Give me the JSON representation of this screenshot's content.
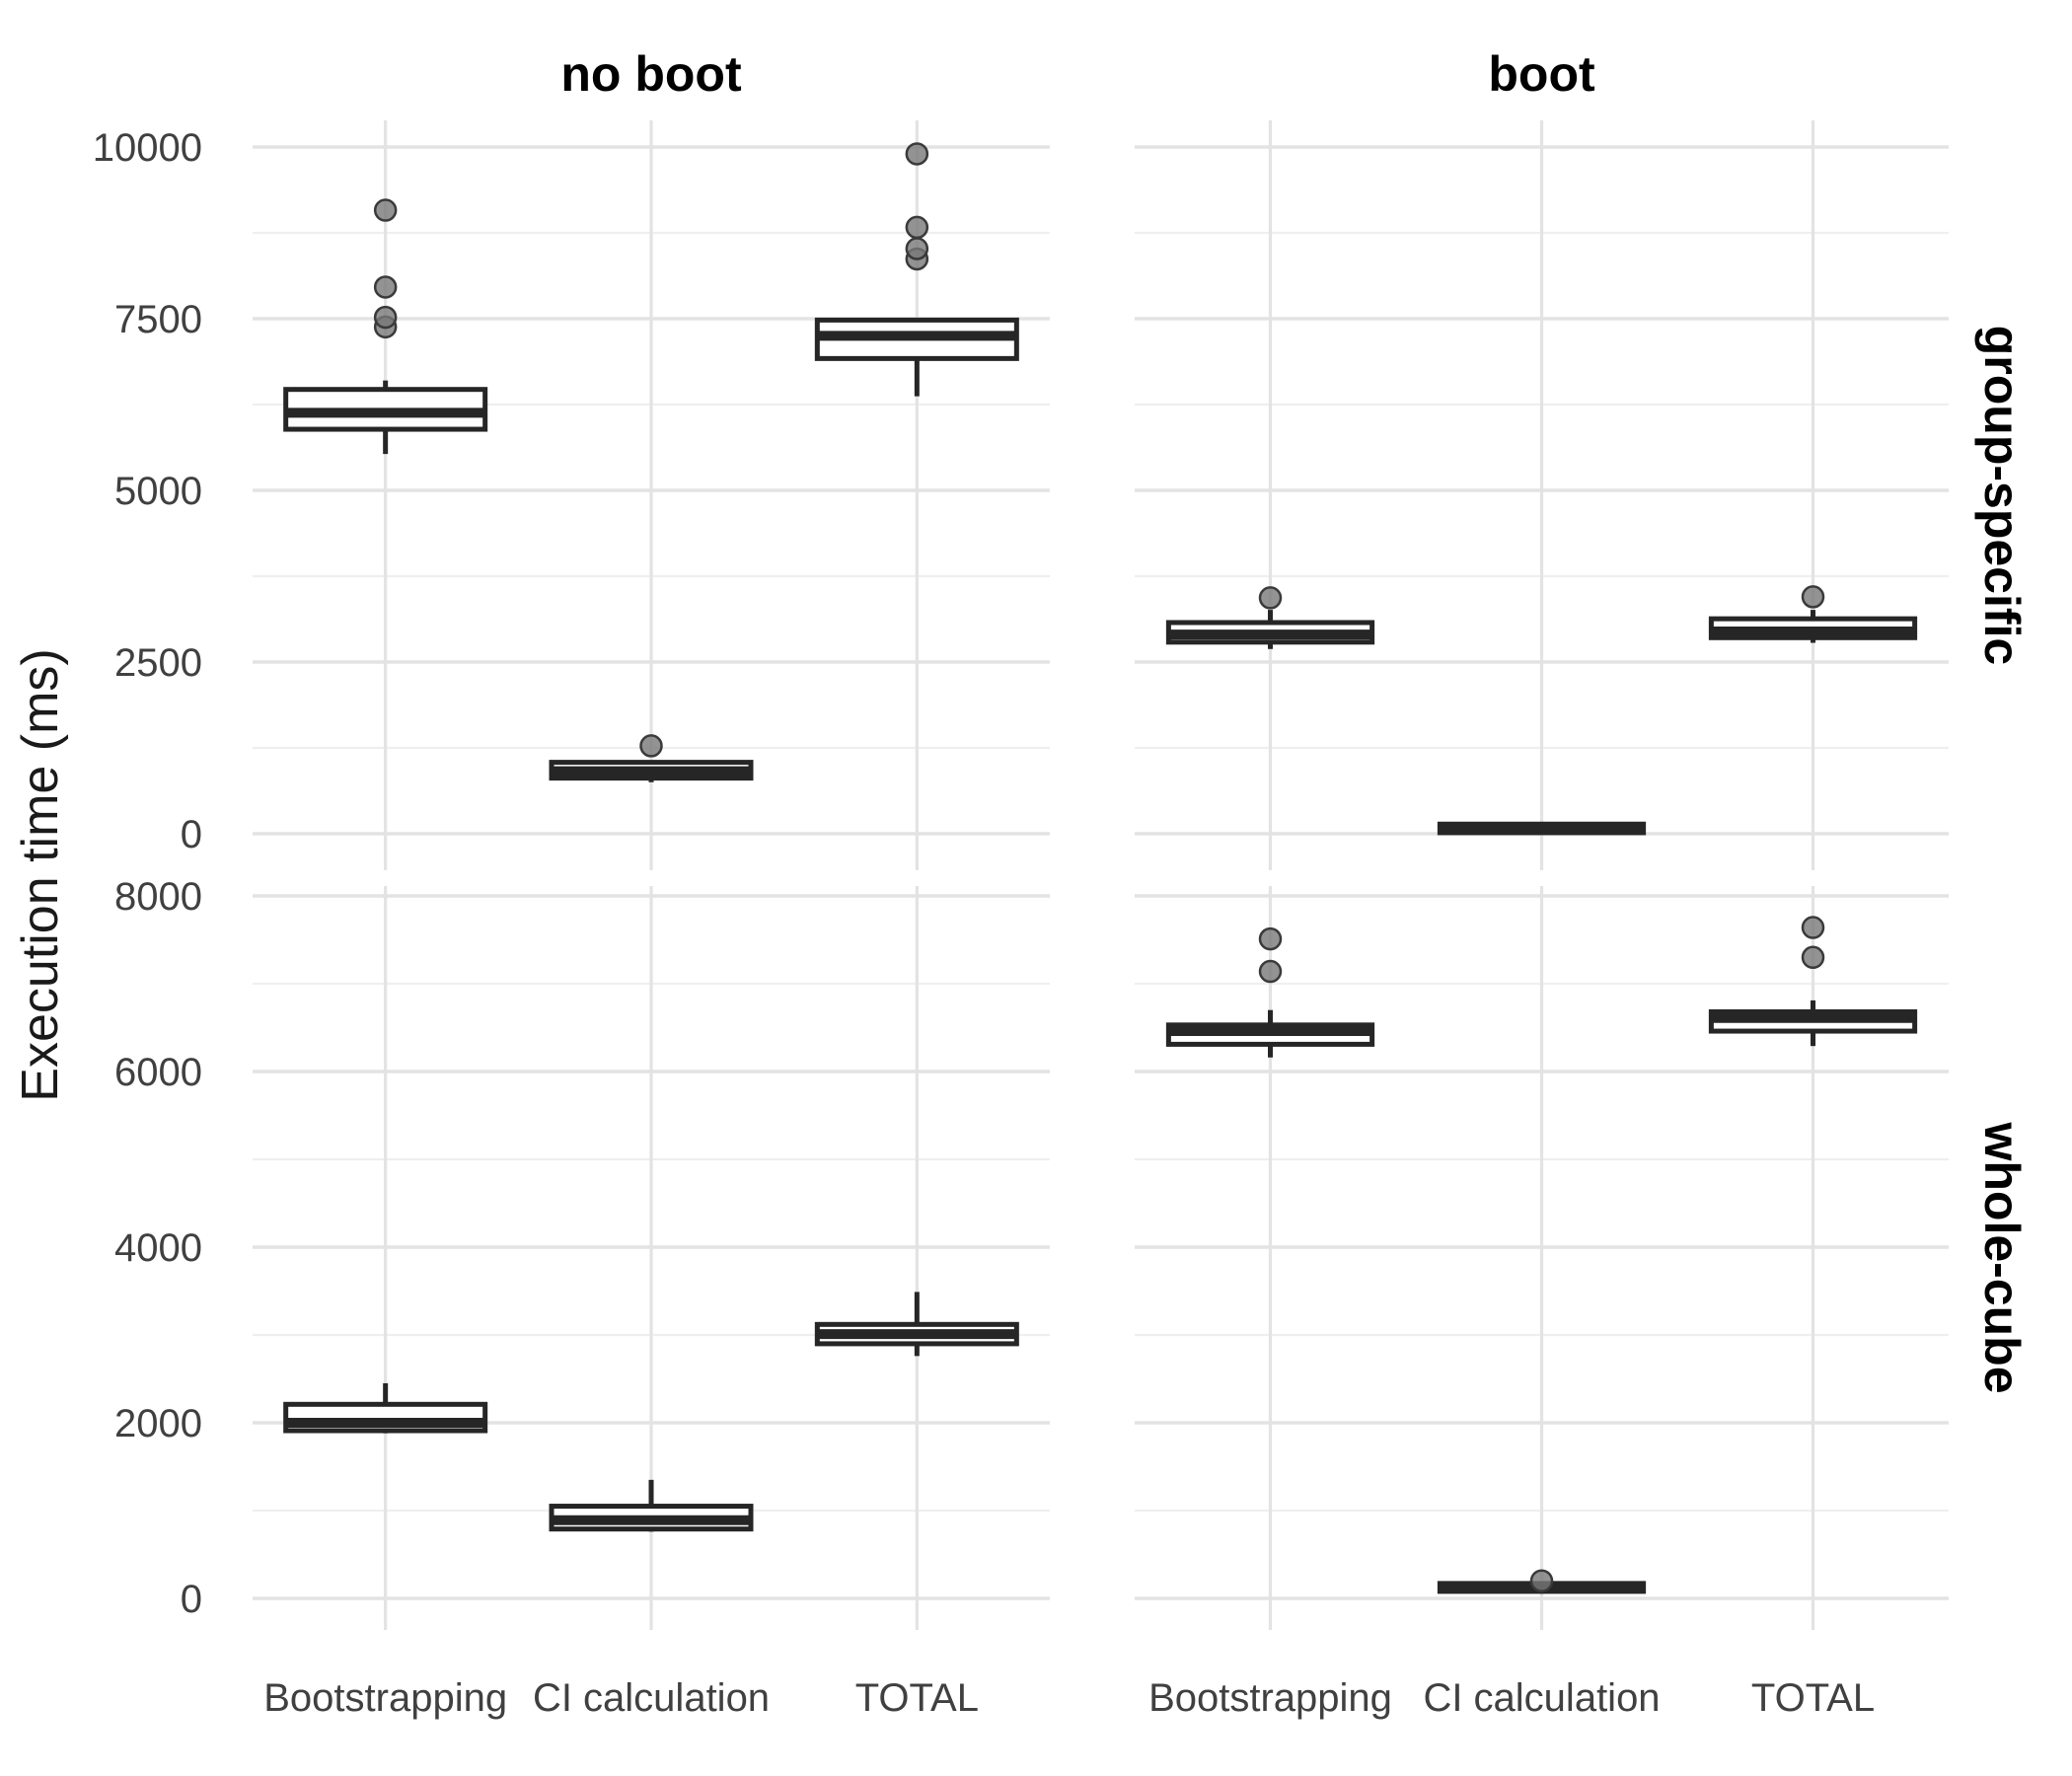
{
  "figure": {
    "y_axis_title": "Execution time (ms)",
    "column_facet_labels": [
      "no boot",
      "boot"
    ],
    "row_facet_labels": [
      "group-specific",
      "whole-cube"
    ],
    "x_category_labels": [
      "Bootstrapping",
      "CI calculation",
      "TOTAL"
    ]
  },
  "style": {
    "background": "#ffffff",
    "grid_major_color": "#e3e3e3",
    "grid_minor_color": "#efefef",
    "box_stroke_color": "#262626",
    "box_fill_color": "#ffffff",
    "outlier_fill_color": "#787878",
    "outlier_stroke_color": "#3a3a3a",
    "tick_text_color": "#404040",
    "strip_text_color": "#000000",
    "axis_title_color": "#1a1a1a"
  },
  "chart_data": {
    "type": "boxplot",
    "title": "",
    "xlabel": "",
    "ylabel": "Execution time (ms)",
    "categories": [
      "Bootstrapping",
      "CI calculation",
      "TOTAL"
    ],
    "facets": {
      "columns": [
        "no boot",
        "boot"
      ],
      "rows": [
        "group-specific",
        "whole-cube"
      ]
    },
    "y_axes": [
      {
        "row": "group-specific",
        "ticks": [
          0,
          2500,
          5000,
          7500,
          10000
        ],
        "minor_ticks": [
          1250,
          3750,
          6250,
          8750
        ],
        "ylim": [
          -530,
          10390
        ],
        "grid": true
      },
      {
        "row": "whole-cube",
        "ticks": [
          0,
          2000,
          4000,
          6000,
          8000
        ],
        "minor_ticks": [
          1000,
          3000,
          5000,
          7000
        ],
        "ylim": [
          -360,
          8110
        ],
        "grid": true
      }
    ],
    "legend": {
      "shown": false
    },
    "panels": [
      {
        "col": "no boot",
        "row": "group-specific",
        "boxes": [
          {
            "category": "Bootstrapping",
            "whisker_low": 5530,
            "q1": 5890,
            "median": 6130,
            "q3": 6470,
            "whisker_high": 6600,
            "outliers": [
              7380,
              7520,
              7960,
              9080
            ]
          },
          {
            "category": "CI calculation",
            "whisker_low": 750,
            "q1": 810,
            "median": 910,
            "q3": 1040,
            "whisker_high": 1070,
            "outliers": [
              1280
            ]
          },
          {
            "category": "TOTAL",
            "whisker_low": 6370,
            "q1": 6920,
            "median": 7250,
            "q3": 7480,
            "whisker_high": 7490,
            "outliers": [
              8370,
              8520,
              8830,
              9900
            ]
          }
        ]
      },
      {
        "col": "boot",
        "row": "group-specific",
        "boxes": [
          {
            "category": "Bootstrapping",
            "whisker_low": 2690,
            "q1": 2790,
            "median": 2900,
            "q3": 3075,
            "whisker_high": 3260,
            "outliers": [
              3435
            ]
          },
          {
            "category": "CI calculation",
            "whisker_low": 0,
            "q1": 15,
            "median": 60,
            "q3": 140,
            "whisker_high": 170,
            "outliers": []
          },
          {
            "category": "TOTAL",
            "whisker_low": 2780,
            "q1": 2855,
            "median": 2945,
            "q3": 3130,
            "whisker_high": 3260,
            "outliers": [
              3450
            ]
          }
        ]
      },
      {
        "col": "no boot",
        "row": "whole-cube",
        "boxes": [
          {
            "category": "Bootstrapping",
            "whisker_low": 1880,
            "q1": 1910,
            "median": 2000,
            "q3": 2210,
            "whisker_high": 2450,
            "outliers": []
          },
          {
            "category": "CI calculation",
            "whisker_low": 760,
            "q1": 790,
            "median": 890,
            "q3": 1050,
            "whisker_high": 1350,
            "outliers": []
          },
          {
            "category": "TOTAL",
            "whisker_low": 2760,
            "q1": 2900,
            "median": 3010,
            "q3": 3120,
            "whisker_high": 3490,
            "outliers": []
          }
        ]
      },
      {
        "col": "boot",
        "row": "whole-cube",
        "boxes": [
          {
            "category": "Bootstrapping",
            "whisker_low": 6160,
            "q1": 6310,
            "median": 6460,
            "q3": 6530,
            "whisker_high": 6700,
            "outliers": [
              7140,
              7510
            ]
          },
          {
            "category": "CI calculation",
            "whisker_low": 55,
            "q1": 80,
            "median": 120,
            "q3": 170,
            "whisker_high": 190,
            "outliers": [
              200
            ]
          },
          {
            "category": "TOTAL",
            "whisker_low": 6290,
            "q1": 6460,
            "median": 6610,
            "q3": 6680,
            "whisker_high": 6810,
            "outliers": [
              7300,
              7640
            ]
          }
        ]
      }
    ],
    "layout_hints": {
      "facet_layout": "grid 2 rows x 2 cols",
      "grid": "major and minor horizontal, major vertical at categories",
      "panel_background": "white, no border",
      "strip_position": "columns top, rows right rotated 90deg"
    }
  }
}
